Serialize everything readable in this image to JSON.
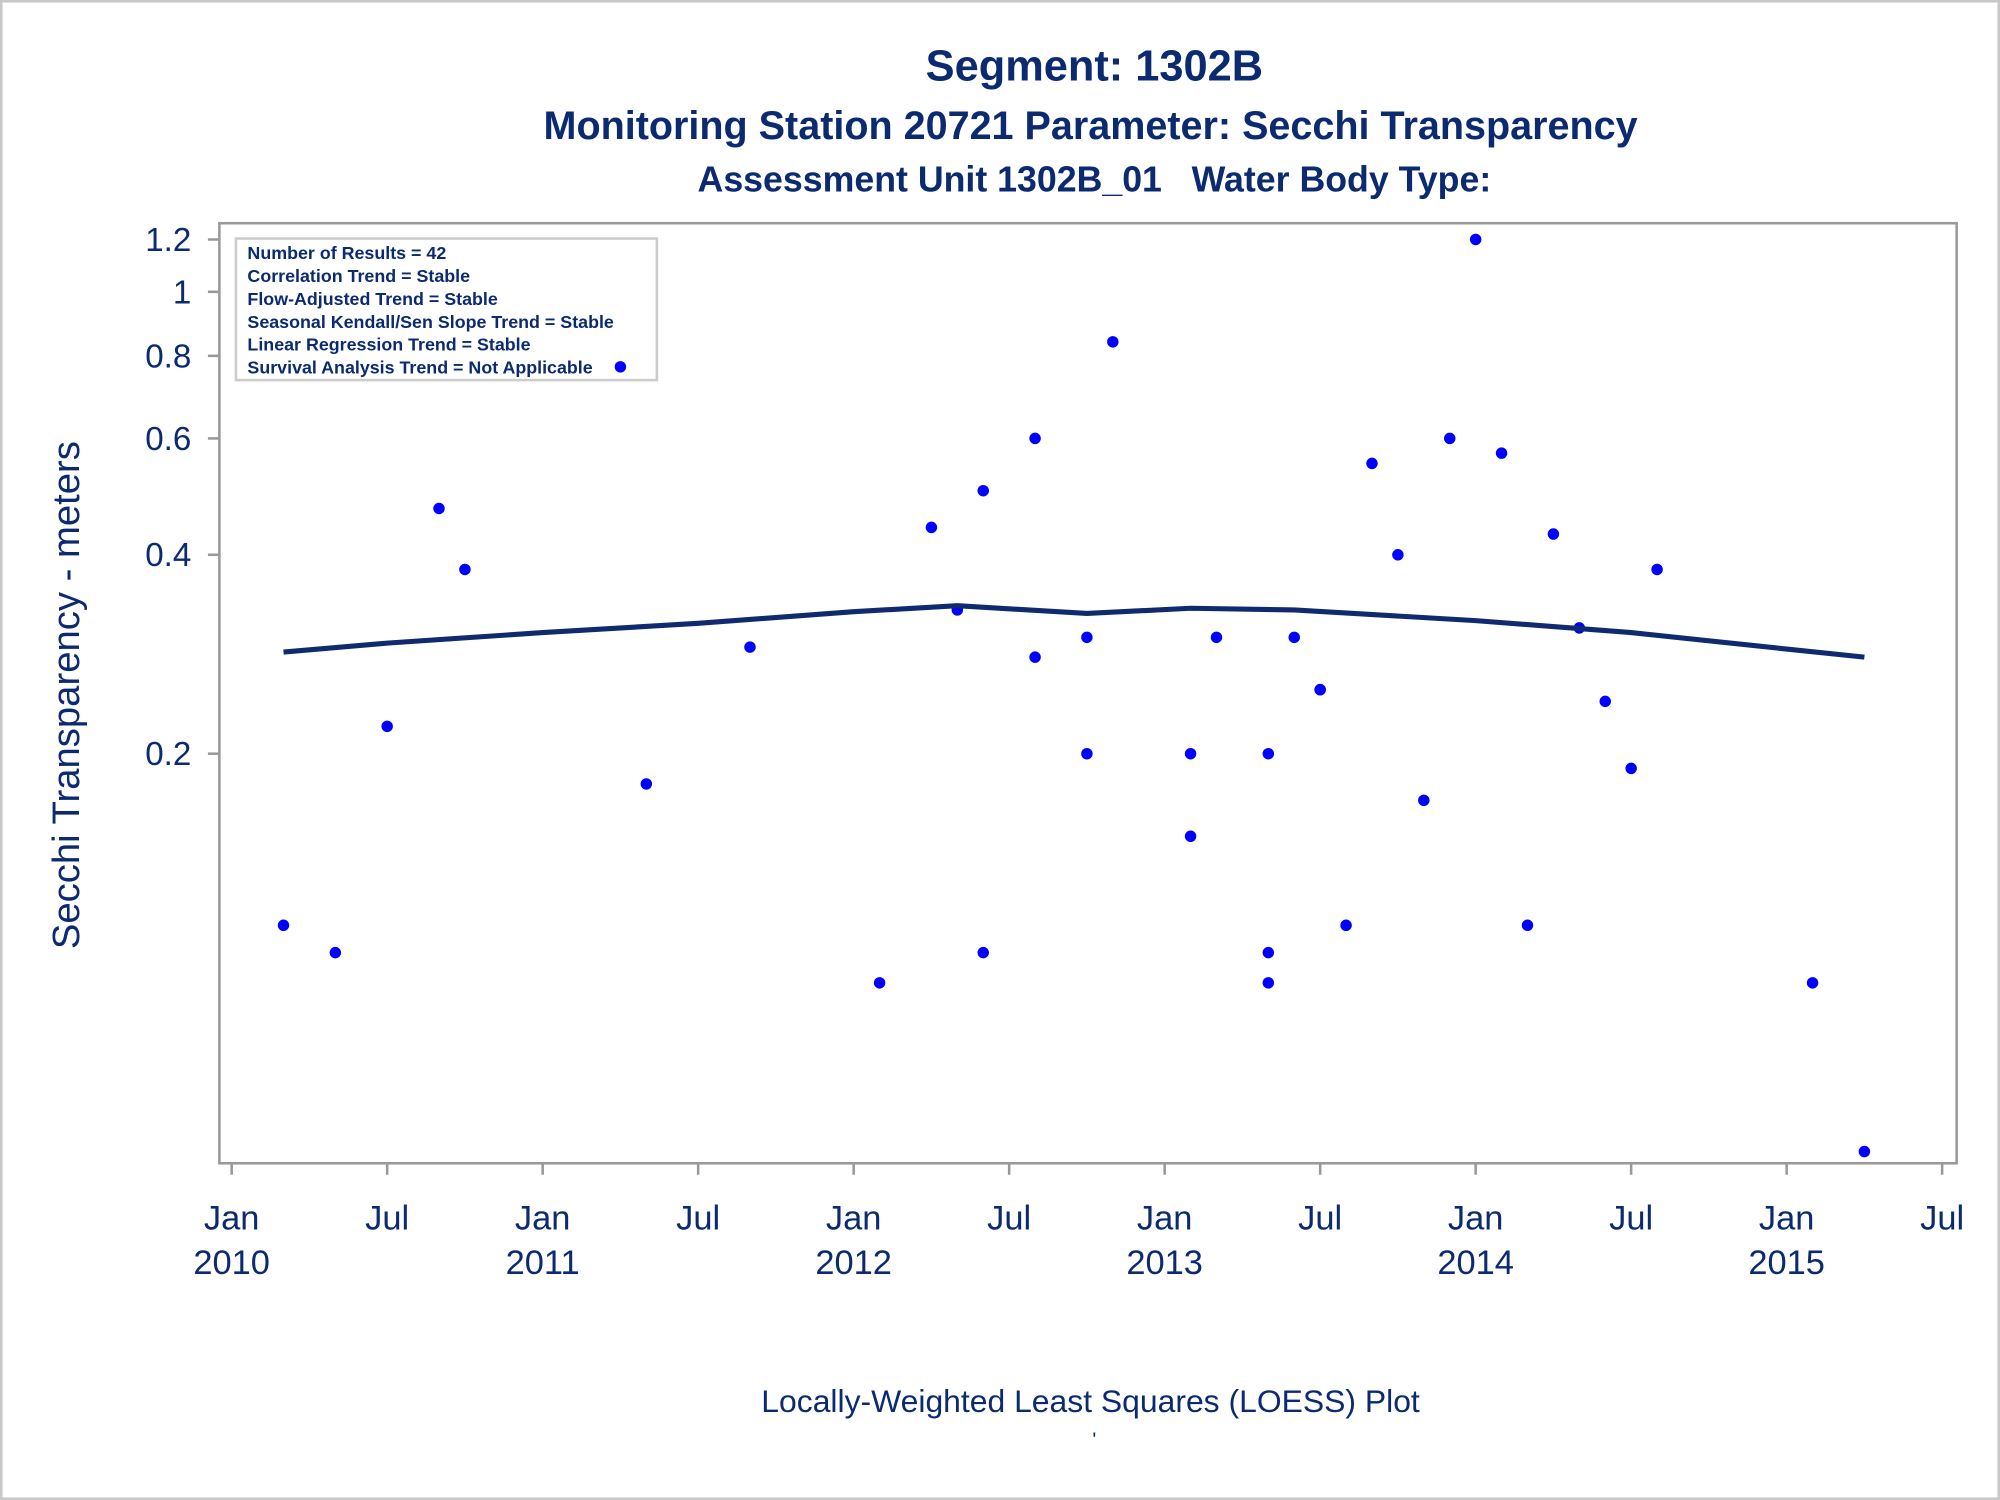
{
  "chart_data": {
    "type": "scatter",
    "title": "Segment: 1302B",
    "subtitle": "Monitoring Station 20721 Parameter: Secchi Transparency",
    "subtitle2": "Assessment Unit 1302B_01   Water Body Type:",
    "y_label": "Secchi Transparency - meters",
    "footer": "Locally-Weighted Least Squares (LOESS) Plot",
    "footnote": "'",
    "annotations": [
      "Number of Results = 42",
      "Correlation Trend = Stable",
      "Flow-Adjusted Trend = Stable",
      "Seasonal Kendall/Sen Slope Trend = Stable",
      "Linear Regression Trend = Stable",
      "Survival Analysis Trend = Not Applicable"
    ],
    "y_log": true,
    "ylim": [
      0.048,
      1.27
    ],
    "yticks": [
      0.2,
      0.4,
      0.6,
      0.8,
      1,
      1.2
    ],
    "xlim": [
      "2009-12-17",
      "2015-07-18"
    ],
    "xticks": [
      {
        "value": "2010-01",
        "label": "Jan 2010"
      },
      {
        "value": "2010-07",
        "label": "Jul"
      },
      {
        "value": "2011-01",
        "label": "Jan 2011"
      },
      {
        "value": "2011-07",
        "label": "Jul"
      },
      {
        "value": "2012-01",
        "label": "Jan 2012"
      },
      {
        "value": "2012-07",
        "label": "Jul"
      },
      {
        "value": "2013-01",
        "label": "Jan 2013"
      },
      {
        "value": "2013-07",
        "label": "Jul"
      },
      {
        "value": "2014-01",
        "label": "Jan 2014"
      },
      {
        "value": "2014-07",
        "label": "Jul"
      },
      {
        "value": "2015-01",
        "label": "Jan 2015"
      },
      {
        "value": "2015-07",
        "label": "Jul"
      }
    ],
    "series": [
      {
        "color": "#0000ff",
        "x": [
          "2010-03",
          "2010-05",
          "2010-07",
          "2010-09",
          "2010-10",
          "2011-04",
          "2011-05",
          "2011-09",
          "2012-02",
          "2012-04",
          "2012-05",
          "2012-06",
          "2012-06",
          "2012-08",
          "2012-08",
          "2012-10",
          "2012-10",
          "2012-11",
          "2013-02",
          "2013-02",
          "2013-03",
          "2013-05",
          "2013-05",
          "2013-05",
          "2013-06",
          "2013-07",
          "2013-07",
          "2013-08",
          "2013-09",
          "2013-10",
          "2013-11",
          "2013-12",
          "2014-01",
          "2014-02",
          "2014-03",
          "2014-04",
          "2014-05",
          "2014-06",
          "2014-07",
          "2014-08",
          "2015-02",
          "2015-04"
        ],
        "values": [
          0.11,
          0.1,
          0.22,
          0.47,
          0.38,
          0.77,
          0.18,
          0.29,
          0.09,
          0.44,
          0.33,
          0.5,
          0.1,
          0.6,
          0.28,
          0.2,
          0.3,
          0.84,
          0.15,
          0.2,
          0.3,
          0.1,
          0.09,
          0.2,
          0.3,
          0.25,
          0.25,
          0.11,
          0.55,
          0.4,
          0.17,
          0.6,
          1.2,
          0.57,
          0.11,
          0.43,
          0.31,
          0.24,
          0.19,
          0.38,
          0.09,
          0.05
        ]
      },
      {
        "type": "line",
        "color": "#0f2a6f",
        "x": [
          "2010-03",
          "2010-07",
          "2011-01",
          "2011-07",
          "2012-01",
          "2012-05",
          "2012-10",
          "2013-02",
          "2013-06",
          "2014-01",
          "2014-07",
          "2015-01",
          "2015-04"
        ],
        "values": [
          0.285,
          0.294,
          0.305,
          0.315,
          0.328,
          0.335,
          0.326,
          0.332,
          0.33,
          0.318,
          0.305,
          0.288,
          0.28
        ]
      }
    ]
  }
}
